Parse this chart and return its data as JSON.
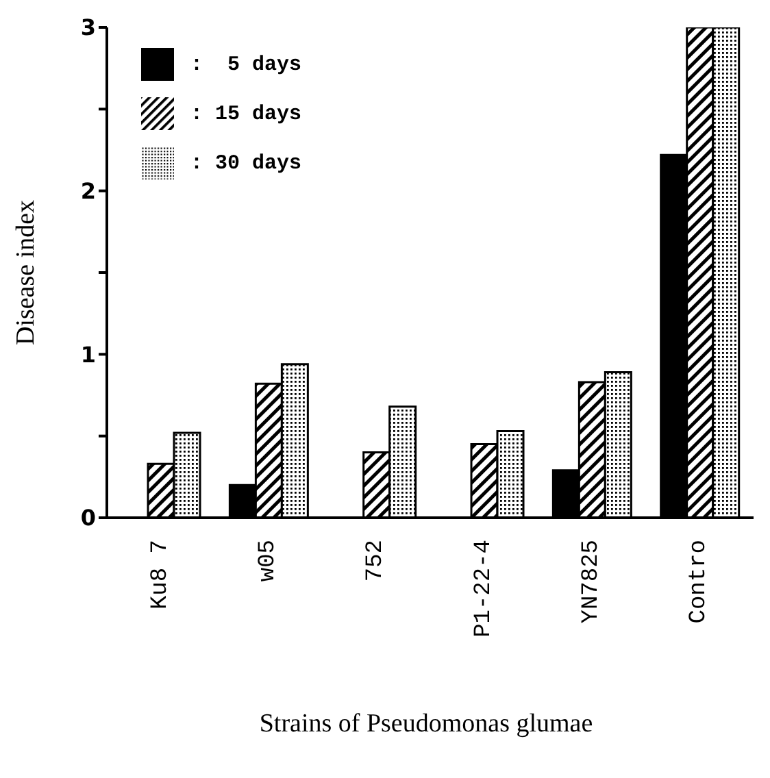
{
  "chart_data": {
    "type": "bar",
    "xlabel": "Strains of Pseudomonas glumae",
    "ylabel": "Disease index",
    "categories": [
      "Ku8 7",
      "w05",
      "752",
      "P1-22-4",
      "YN7825",
      "Contro"
    ],
    "series": [
      {
        "name": ":  5 days",
        "color": "#000000",
        "values": [
          null,
          0.2,
          null,
          null,
          0.29,
          2.22
        ]
      },
      {
        "name": ": 15 days",
        "color": "#000000",
        "values": [
          0.33,
          0.82,
          0.4,
          0.45,
          0.83,
          3
        ]
      },
      {
        "name": ": 30 days",
        "color": "#000000",
        "values": [
          0.52,
          0.94,
          0.68,
          0.53,
          0.89,
          3
        ]
      }
    ],
    "ylim": [
      0,
      3
    ],
    "yticks": [
      0,
      {
        "value": 0.5,
        "label": null
      },
      1,
      {
        "value": 1.5,
        "label": null
      },
      2,
      {
        "value": 2.5,
        "label": null
      },
      3
    ],
    "legend": "top left",
    "grid": false
  }
}
